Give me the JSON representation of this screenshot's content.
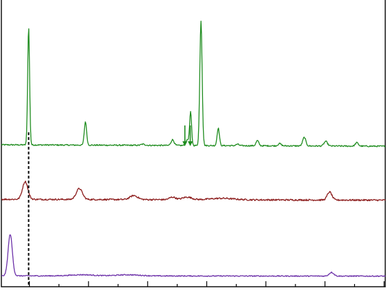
{
  "chart_data": {
    "type": "line",
    "title": "",
    "xlabel": "",
    "ylabel": "",
    "xlim": [
      0,
      100
    ],
    "ylim": [
      0,
      100
    ],
    "grid": false,
    "legend": "none",
    "x_ticks_major": [
      7.3,
      22.7,
      38.1,
      53.5,
      68.9,
      84.3,
      99.7
    ],
    "x_ticks_minor": [
      15,
      30.4,
      45.8,
      61.2,
      76.6,
      92
    ],
    "reference_line_x": 7.1,
    "series": [
      {
        "color": "#1e8c1e",
        "baseline": 49.5,
        "baseline_end": 49.0,
        "noise": 0.45,
        "peaks": [
          {
            "x": 7.1,
            "h": 41.0,
            "w": 0.25
          },
          {
            "x": 21.9,
            "h": 8.2,
            "w": 0.3
          },
          {
            "x": 36.9,
            "h": 0.4,
            "w": 0.5
          },
          {
            "x": 44.6,
            "h": 2.0,
            "w": 0.4
          },
          {
            "x": 48.5,
            "h": 2.0,
            "w": 0.4
          },
          {
            "x": 49.3,
            "h": 11.4,
            "w": 0.25
          },
          {
            "x": 52.0,
            "h": 43.5,
            "w": 0.3
          },
          {
            "x": 56.5,
            "h": 6.1,
            "w": 0.3
          },
          {
            "x": 61.5,
            "h": 0.5,
            "w": 0.4
          },
          {
            "x": 66.7,
            "h": 1.8,
            "w": 0.35
          },
          {
            "x": 72.5,
            "h": 0.8,
            "w": 0.4
          },
          {
            "x": 78.9,
            "h": 3.0,
            "w": 0.4
          },
          {
            "x": 84.5,
            "h": 1.6,
            "w": 0.45
          },
          {
            "x": 92.6,
            "h": 1.2,
            "w": 0.4
          }
        ],
        "annotations": [
          {
            "type": "arrow",
            "x": 47.8
          },
          {
            "type": "arrow",
            "x": 49.2
          }
        ]
      },
      {
        "color": "#8b1a1a",
        "baseline": 30.5,
        "baseline_end": 30.2,
        "noise": 0.55,
        "peaks": [
          {
            "x": 6.2,
            "h": 6.2,
            "w": 0.7
          },
          {
            "x": 20.3,
            "h": 3.8,
            "w": 0.8
          },
          {
            "x": 34.5,
            "h": 1.4,
            "w": 1.0
          },
          {
            "x": 44.6,
            "h": 0.9,
            "w": 0.8
          },
          {
            "x": 48.4,
            "h": 0.9,
            "w": 1.2
          },
          {
            "x": 57.5,
            "h": 0.5,
            "w": 3.0
          },
          {
            "x": 85.5,
            "h": 2.8,
            "w": 0.6
          }
        ]
      },
      {
        "color": "#6b2fa8",
        "baseline": 3.8,
        "baseline_end": 3.7,
        "noise": 0.35,
        "peaks": [
          {
            "x": 2.3,
            "h": 14.5,
            "w": 0.55
          },
          {
            "x": 21.0,
            "h": 0.4,
            "w": 3.0
          },
          {
            "x": 33.0,
            "h": 0.4,
            "w": 3.0
          },
          {
            "x": 86.0,
            "h": 1.3,
            "w": 0.6
          }
        ]
      }
    ]
  }
}
